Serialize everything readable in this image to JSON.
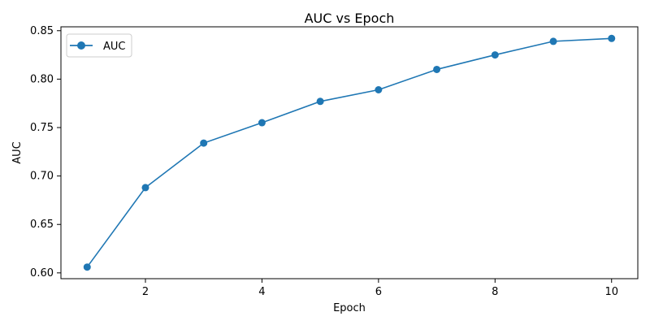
{
  "chart_data": {
    "type": "line",
    "title": "AUC vs Epoch",
    "xlabel": "Epoch",
    "ylabel": "AUC",
    "x": [
      1,
      2,
      3,
      4,
      5,
      6,
      7,
      8,
      9,
      10
    ],
    "series": [
      {
        "name": "AUC",
        "color": "#1f77b4",
        "marker": "circle",
        "values": [
          0.606,
          0.688,
          0.734,
          0.755,
          0.777,
          0.789,
          0.81,
          0.825,
          0.839,
          0.842
        ]
      }
    ],
    "xlim": [
      0.55,
      10.45
    ],
    "ylim": [
      0.594,
      0.854
    ],
    "xticks": [
      2,
      4,
      6,
      8,
      10
    ],
    "xtick_labels": [
      "2",
      "4",
      "6",
      "8",
      "10"
    ],
    "yticks": [
      0.6,
      0.65,
      0.7,
      0.75,
      0.8,
      0.85
    ],
    "ytick_labels": [
      "0.60",
      "0.65",
      "0.70",
      "0.75",
      "0.80",
      "0.85"
    ],
    "grid": false,
    "legend_position": "top-left"
  }
}
